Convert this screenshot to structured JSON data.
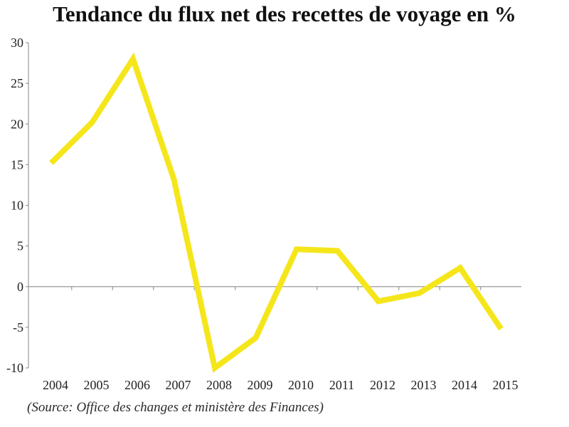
{
  "chart_data": {
    "type": "line",
    "title": "Tendance du flux net des recettes de voyage en %",
    "source": "(Source: Office des changes et ministère des Finances)",
    "xlabel": "",
    "ylabel": "",
    "x": [
      "2004",
      "2005",
      "2006",
      "2007",
      "2008",
      "2009",
      "2010",
      "2011",
      "2012",
      "2013",
      "2014",
      "2015"
    ],
    "series": [
      {
        "values": [
          15.2,
          20.2,
          28,
          13.2,
          -10,
          -6.3,
          4.6,
          4.4,
          -1.8,
          -0.8,
          2.3,
          -5.2
        ]
      }
    ],
    "ylim": [
      -10,
      30
    ],
    "yticks": [
      "-10",
      "-5",
      "0",
      "5",
      "10",
      "15",
      "20",
      "25",
      "30"
    ],
    "grid": false,
    "legend": "none",
    "line_color": "#f5e61c"
  }
}
